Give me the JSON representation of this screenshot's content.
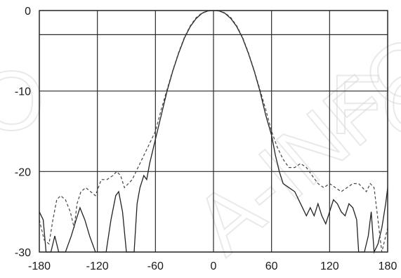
{
  "chart_data": {
    "type": "line",
    "title": "",
    "xlabel": "",
    "ylabel": "",
    "xlim": [
      -180,
      180
    ],
    "ylim": [
      -30,
      0
    ],
    "x_ticks": [
      -180,
      -120,
      -60,
      0,
      60,
      120,
      180
    ],
    "y_ticks": [
      0,
      -10,
      -20,
      -30
    ],
    "x_tick_labels": [
      "-180",
      "-120",
      "-60",
      "0",
      "60",
      "120",
      "180"
    ],
    "y_tick_labels": [
      "0",
      "-10",
      "-20",
      "-30"
    ],
    "extra_gridline_y": -3,
    "grid": true,
    "series": [
      {
        "style": "solid",
        "points": [
          [
            -180,
            -25
          ],
          [
            -176,
            -26
          ],
          [
            -173,
            -30
          ],
          [
            -168,
            -30
          ],
          [
            -164,
            -28
          ],
          [
            -160,
            -30
          ],
          [
            -153,
            -30
          ],
          [
            -147,
            -28
          ],
          [
            -142,
            -26
          ],
          [
            -138,
            -24.5
          ],
          [
            -133,
            -26
          ],
          [
            -128,
            -28
          ],
          [
            -122,
            -30
          ],
          [
            -111,
            -30
          ],
          [
            -106,
            -26
          ],
          [
            -101,
            -23
          ],
          [
            -98,
            -22.5
          ],
          [
            -94,
            -25
          ],
          [
            -90,
            -30
          ],
          [
            -82,
            -30
          ],
          [
            -79,
            -24
          ],
          [
            -76,
            -22
          ],
          [
            -72,
            -20.5
          ],
          [
            -69,
            -21
          ],
          [
            -66,
            -19
          ],
          [
            -63,
            -17.5
          ],
          [
            -60,
            -16
          ],
          [
            -54,
            -13
          ],
          [
            -48,
            -10
          ],
          [
            -42,
            -7.5
          ],
          [
            -36,
            -5.3
          ],
          [
            -30,
            -3.4
          ],
          [
            -24,
            -2
          ],
          [
            -18,
            -1
          ],
          [
            -12,
            -0.35
          ],
          [
            -6,
            -0.05
          ],
          [
            0,
            0
          ],
          [
            6,
            -0.05
          ],
          [
            12,
            -0.35
          ],
          [
            18,
            -1
          ],
          [
            24,
            -2
          ],
          [
            30,
            -3.4
          ],
          [
            36,
            -5.3
          ],
          [
            42,
            -7.5
          ],
          [
            48,
            -10
          ],
          [
            54,
            -13
          ],
          [
            60,
            -15.5
          ],
          [
            64,
            -18
          ],
          [
            68,
            -20
          ],
          [
            72,
            -21.5
          ],
          [
            78,
            -22
          ],
          [
            84,
            -22.5
          ],
          [
            90,
            -24
          ],
          [
            96,
            -25.5
          ],
          [
            100,
            -24.5
          ],
          [
            104,
            -25.5
          ],
          [
            108,
            -24
          ],
          [
            112,
            -25.5
          ],
          [
            116,
            -26.5
          ],
          [
            120,
            -25
          ],
          [
            124,
            -23.5
          ],
          [
            128,
            -24
          ],
          [
            132,
            -25
          ],
          [
            136,
            -25.5
          ],
          [
            140,
            -24
          ],
          [
            144,
            -24.5
          ],
          [
            148,
            -26
          ],
          [
            150,
            -30
          ],
          [
            156,
            -30
          ],
          [
            160,
            -28
          ],
          [
            163,
            -25
          ],
          [
            166,
            -30
          ],
          [
            170,
            -29
          ],
          [
            174,
            -27
          ],
          [
            178,
            -24
          ],
          [
            180,
            -22
          ]
        ]
      },
      {
        "style": "dashed",
        "points": [
          [
            -180,
            -26
          ],
          [
            -175,
            -28.5
          ],
          [
            -170,
            -29
          ],
          [
            -166,
            -26
          ],
          [
            -162,
            -23.5
          ],
          [
            -158,
            -23
          ],
          [
            -153,
            -23.5
          ],
          [
            -148,
            -25
          ],
          [
            -144,
            -27
          ],
          [
            -141,
            -24
          ],
          [
            -137,
            -22.5
          ],
          [
            -132,
            -22
          ],
          [
            -127,
            -22.5
          ],
          [
            -122,
            -23
          ],
          [
            -116,
            -21
          ],
          [
            -110,
            -21
          ],
          [
            -104,
            -20.5
          ],
          [
            -100,
            -20
          ],
          [
            -96,
            -20.5
          ],
          [
            -92,
            -22
          ],
          [
            -88,
            -21.5
          ],
          [
            -84,
            -21
          ],
          [
            -80,
            -20
          ],
          [
            -76,
            -19
          ],
          [
            -72,
            -18
          ],
          [
            -66,
            -16.5
          ],
          [
            -60,
            -15
          ],
          [
            -54,
            -12.3
          ],
          [
            -48,
            -9.8
          ],
          [
            -42,
            -7.4
          ],
          [
            -36,
            -5.2
          ],
          [
            -30,
            -3.3
          ],
          [
            -24,
            -1.9
          ],
          [
            -18,
            -0.9
          ],
          [
            -12,
            -0.3
          ],
          [
            -6,
            -0.05
          ],
          [
            0,
            0
          ],
          [
            6,
            -0.05
          ],
          [
            12,
            -0.3
          ],
          [
            18,
            -0.9
          ],
          [
            24,
            -1.9
          ],
          [
            30,
            -3.3
          ],
          [
            36,
            -5.2
          ],
          [
            42,
            -7.4
          ],
          [
            48,
            -9.8
          ],
          [
            54,
            -12.3
          ],
          [
            60,
            -15
          ],
          [
            66,
            -17
          ],
          [
            72,
            -18.5
          ],
          [
            78,
            -19.5
          ],
          [
            84,
            -19.5
          ],
          [
            90,
            -19
          ],
          [
            96,
            -19.5
          ],
          [
            102,
            -20.5
          ],
          [
            108,
            -21.5
          ],
          [
            114,
            -22
          ],
          [
            120,
            -21.5
          ],
          [
            126,
            -22
          ],
          [
            132,
            -22.5
          ],
          [
            138,
            -22
          ],
          [
            144,
            -21.5
          ],
          [
            150,
            -21.5
          ],
          [
            154,
            -22
          ],
          [
            158,
            -22.5
          ],
          [
            162,
            -21.5
          ],
          [
            166,
            -22
          ],
          [
            170,
            -26
          ],
          [
            174,
            -30
          ],
          [
            178,
            -28
          ],
          [
            180,
            -27
          ]
        ]
      }
    ]
  },
  "watermark": {
    "text_left": "O",
    "text_center": "A-INFO",
    "text_right": "FO"
  }
}
